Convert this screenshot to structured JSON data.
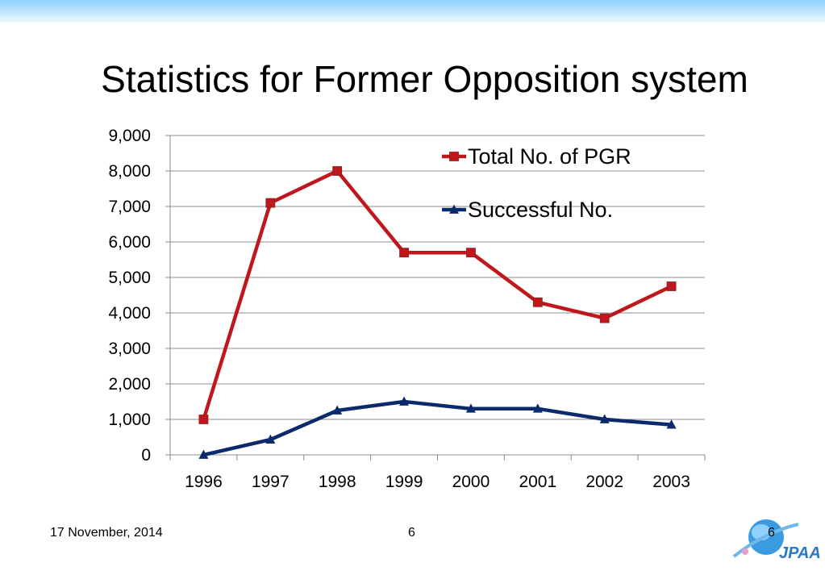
{
  "slide": {
    "title": "Statistics for Former Opposition system",
    "date": "17 November, 2014",
    "page_number": "6",
    "logo_text": "JPAA",
    "logo_page_number": "6"
  },
  "colors": {
    "band": "#8fd0ff",
    "total_series": "#c0171c",
    "successful_series": "#0b2a6b",
    "gridline": "#8c8c8c"
  },
  "chart_data": {
    "type": "line",
    "title": "",
    "xlabel": "",
    "ylabel": "",
    "categories": [
      "1996",
      "1997",
      "1998",
      "1999",
      "2000",
      "2001",
      "2002",
      "2003"
    ],
    "ylim": [
      0,
      9000
    ],
    "yticks": [
      0,
      1000,
      2000,
      3000,
      4000,
      5000,
      6000,
      7000,
      8000,
      9000
    ],
    "ytick_labels": [
      "0",
      "1,000",
      "2,000",
      "3,000",
      "4,000",
      "5,000",
      "6,000",
      "7,000",
      "8,000",
      "9,000"
    ],
    "grid": true,
    "legend_position": "top-right",
    "series": [
      {
        "name": "Total No. of PGR",
        "marker": "square",
        "color": "#c0171c",
        "values": [
          1000,
          7100,
          8000,
          5700,
          5700,
          4300,
          3850,
          4750
        ]
      },
      {
        "name": "Successful No.",
        "marker": "triangle",
        "color": "#0b2a6b",
        "values": [
          0,
          430,
          1250,
          1500,
          1300,
          1300,
          1000,
          850
        ]
      }
    ]
  }
}
